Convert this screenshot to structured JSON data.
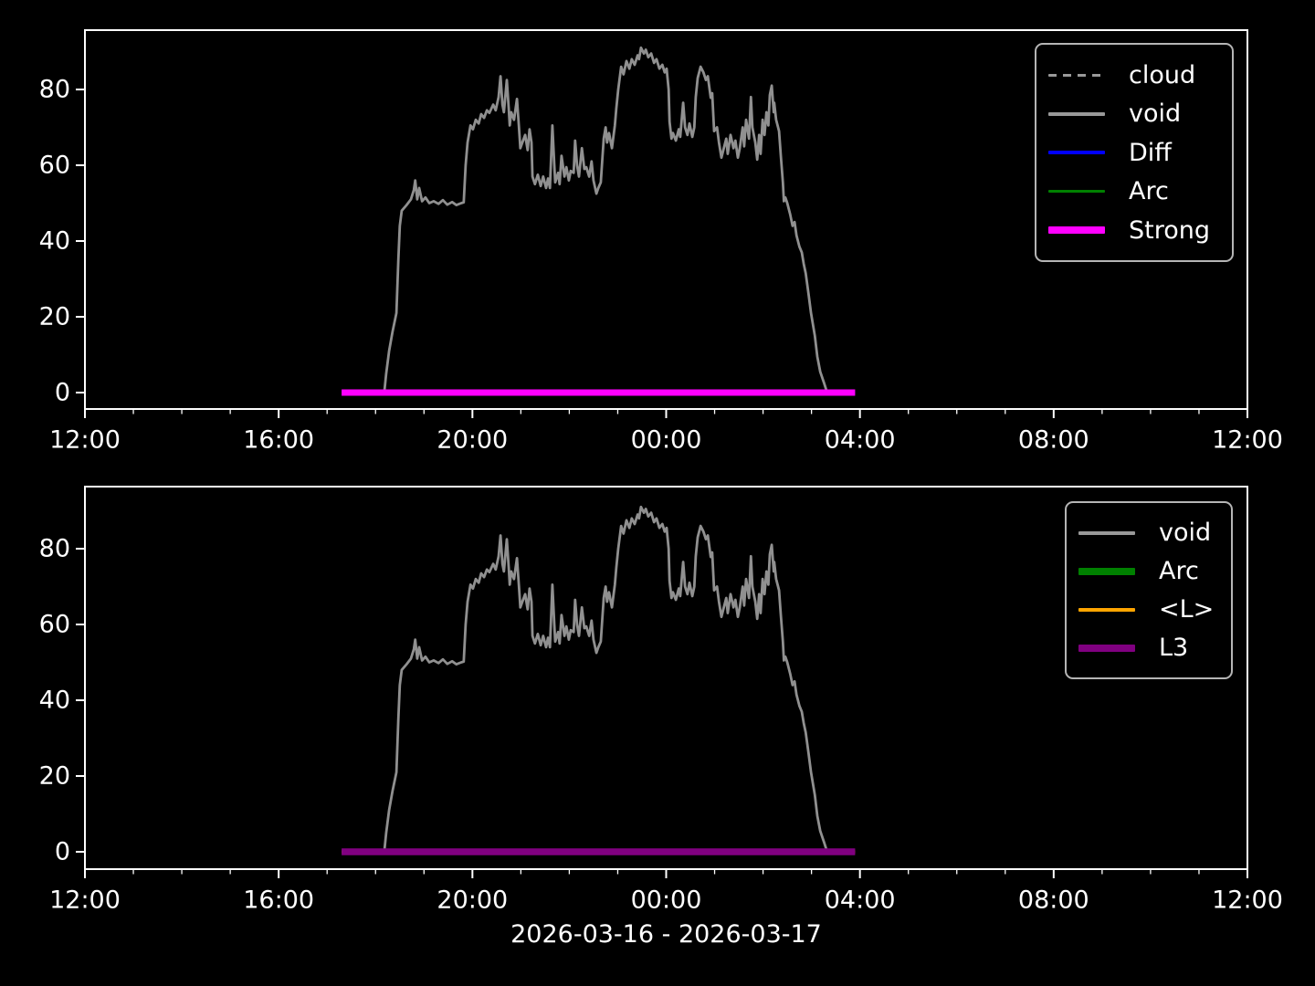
{
  "figure": {
    "background": "#000000",
    "frame_color": "#ffffff",
    "text_color": "#ffffff",
    "legend_frame_color": "#b5b5b5",
    "xlabel": "2026-03-16 - 2026-03-17"
  },
  "shared_series_points": {
    "void": [
      [
        18.18,
        0
      ],
      [
        18.22,
        5
      ],
      [
        18.28,
        11
      ],
      [
        18.35,
        16
      ],
      [
        18.43,
        21
      ],
      [
        18.47,
        35
      ],
      [
        18.5,
        44
      ],
      [
        18.54,
        48
      ],
      [
        18.64,
        49.5
      ],
      [
        18.73,
        51
      ],
      [
        18.79,
        53.5
      ],
      [
        18.82,
        56
      ],
      [
        18.86,
        51
      ],
      [
        18.9,
        54
      ],
      [
        18.96,
        50.5
      ],
      [
        19.03,
        51.5
      ],
      [
        19.11,
        50
      ],
      [
        19.2,
        50.5
      ],
      [
        19.3,
        49.8
      ],
      [
        19.39,
        50.8
      ],
      [
        19.48,
        49.6
      ],
      [
        19.58,
        50.3
      ],
      [
        19.67,
        49.5
      ],
      [
        19.77,
        50
      ],
      [
        19.82,
        50.2
      ],
      [
        19.86,
        60
      ],
      [
        19.9,
        66
      ],
      [
        19.96,
        70.5
      ],
      [
        20.01,
        69.5
      ],
      [
        20.07,
        72
      ],
      [
        20.13,
        71
      ],
      [
        20.18,
        73.5
      ],
      [
        20.24,
        72.5
      ],
      [
        20.3,
        74.5
      ],
      [
        20.35,
        73.8
      ],
      [
        20.43,
        76
      ],
      [
        20.48,
        74.5
      ],
      [
        20.54,
        78
      ],
      [
        20.58,
        83.5
      ],
      [
        20.62,
        76
      ],
      [
        20.65,
        74
      ],
      [
        20.71,
        82.5
      ],
      [
        20.75,
        75
      ],
      [
        20.77,
        70.5
      ],
      [
        20.8,
        74
      ],
      [
        20.86,
        72
      ],
      [
        20.92,
        77.5
      ],
      [
        20.96,
        70
      ],
      [
        20.99,
        64.5
      ],
      [
        21.03,
        66
      ],
      [
        21.09,
        68
      ],
      [
        21.14,
        64
      ],
      [
        21.18,
        69.5
      ],
      [
        21.22,
        66
      ],
      [
        21.24,
        57
      ],
      [
        21.29,
        55
      ],
      [
        21.35,
        57.5
      ],
      [
        21.41,
        54.5
      ],
      [
        21.46,
        57
      ],
      [
        21.52,
        54
      ],
      [
        21.56,
        56.5
      ],
      [
        21.6,
        54
      ],
      [
        21.65,
        70.5
      ],
      [
        21.69,
        60
      ],
      [
        21.71,
        55.5
      ],
      [
        21.77,
        58
      ],
      [
        21.8,
        55
      ],
      [
        21.84,
        62.5
      ],
      [
        21.9,
        57
      ],
      [
        21.94,
        59.5
      ],
      [
        21.99,
        56
      ],
      [
        22.03,
        58.5
      ],
      [
        22.09,
        58
      ],
      [
        22.12,
        66.5
      ],
      [
        22.16,
        60
      ],
      [
        22.2,
        57
      ],
      [
        22.26,
        64.5
      ],
      [
        22.31,
        59
      ],
      [
        22.35,
        59.5
      ],
      [
        22.41,
        57
      ],
      [
        22.46,
        61
      ],
      [
        22.5,
        56
      ],
      [
        22.56,
        52.5
      ],
      [
        22.6,
        54
      ],
      [
        22.65,
        55.5
      ],
      [
        22.71,
        67
      ],
      [
        22.75,
        70
      ],
      [
        22.78,
        66
      ],
      [
        22.82,
        68.5
      ],
      [
        22.88,
        64.5
      ],
      [
        22.94,
        70.5
      ],
      [
        22.97,
        75
      ],
      [
        23.01,
        80
      ],
      [
        23.07,
        86
      ],
      [
        23.12,
        84
      ],
      [
        23.18,
        87.5
      ],
      [
        23.24,
        85.5
      ],
      [
        23.29,
        88
      ],
      [
        23.35,
        86.5
      ],
      [
        23.41,
        89
      ],
      [
        23.44,
        88
      ],
      [
        23.48,
        91
      ],
      [
        23.54,
        89.5
      ],
      [
        23.58,
        90.5
      ],
      [
        23.63,
        88.5
      ],
      [
        23.69,
        89.5
      ],
      [
        23.75,
        87
      ],
      [
        23.8,
        88
      ],
      [
        23.86,
        85.5
      ],
      [
        23.92,
        86.5
      ],
      [
        23.97,
        84.5
      ],
      [
        24.01,
        85.5
      ],
      [
        24.05,
        80
      ],
      [
        24.07,
        71.5
      ],
      [
        24.11,
        67
      ],
      [
        24.14,
        68.5
      ],
      [
        24.2,
        66.5
      ],
      [
        24.26,
        69.5
      ],
      [
        24.29,
        67.5
      ],
      [
        24.35,
        76.5
      ],
      [
        24.39,
        70
      ],
      [
        24.44,
        68
      ],
      [
        24.48,
        71
      ],
      [
        24.54,
        67.5
      ],
      [
        24.58,
        70
      ],
      [
        24.61,
        78
      ],
      [
        24.65,
        83
      ],
      [
        24.71,
        86
      ],
      [
        24.77,
        84.5
      ],
      [
        24.82,
        82.5
      ],
      [
        24.86,
        83.5
      ],
      [
        24.92,
        77.8
      ],
      [
        24.95,
        79
      ],
      [
        24.99,
        69
      ],
      [
        25.05,
        70
      ],
      [
        25.09,
        66
      ],
      [
        25.14,
        62
      ],
      [
        25.18,
        64
      ],
      [
        25.24,
        67
      ],
      [
        25.27,
        63
      ],
      [
        25.33,
        68
      ],
      [
        25.39,
        64.5
      ],
      [
        25.43,
        66.5
      ],
      [
        25.48,
        62
      ],
      [
        25.52,
        64.5
      ],
      [
        25.58,
        70
      ],
      [
        25.61,
        65
      ],
      [
        25.65,
        72
      ],
      [
        25.71,
        67
      ],
      [
        25.75,
        78
      ],
      [
        25.78,
        70
      ],
      [
        25.84,
        66
      ],
      [
        25.88,
        61.5
      ],
      [
        25.92,
        68
      ],
      [
        25.95,
        63
      ],
      [
        25.99,
        72
      ],
      [
        26.03,
        68
      ],
      [
        26.07,
        74
      ],
      [
        26.11,
        70.5
      ],
      [
        26.14,
        78.5
      ],
      [
        26.18,
        81
      ],
      [
        26.22,
        74
      ],
      [
        26.23,
        76.5
      ],
      [
        26.27,
        72
      ],
      [
        26.33,
        69
      ],
      [
        26.37,
        62
      ],
      [
        26.41,
        55.5
      ],
      [
        26.43,
        50.5
      ],
      [
        26.46,
        51.5
      ],
      [
        26.5,
        50
      ],
      [
        26.56,
        47
      ],
      [
        26.61,
        44
      ],
      [
        26.65,
        45
      ],
      [
        26.69,
        41.5
      ],
      [
        26.75,
        38.5
      ],
      [
        26.8,
        37
      ],
      [
        26.84,
        34
      ],
      [
        26.88,
        31.5
      ],
      [
        26.94,
        26
      ],
      [
        26.99,
        21
      ],
      [
        27.07,
        15
      ],
      [
        27.12,
        9.5
      ],
      [
        27.18,
        5.5
      ],
      [
        27.26,
        2.5
      ],
      [
        27.31,
        0.5
      ],
      [
        27.33,
        0
      ]
    ]
  },
  "chart_data": [
    {
      "type": "line",
      "title": "",
      "xlabel": "",
      "ylabel": "",
      "x_axis": {
        "range_hours": [
          12,
          36
        ],
        "tick_hours": [
          12,
          16,
          20,
          24,
          28,
          32,
          36
        ],
        "tick_labels": [
          "12:00",
          "16:00",
          "20:00",
          "00:00",
          "04:00",
          "08:00",
          "12:00"
        ],
        "minor_tick_every_hours": 1
      },
      "y_axis": {
        "ticks": [
          0,
          20,
          40,
          60,
          80
        ],
        "range": [
          -4.3,
          95.7
        ]
      },
      "grid": false,
      "legend": {
        "position": "upper right",
        "entries": [
          {
            "label": "cloud",
            "color": "#999999",
            "width": 3,
            "dashed": true
          },
          {
            "label": "void",
            "color": "#999999",
            "width": 4,
            "dashed": false
          },
          {
            "label": "Diff",
            "color": "#0000ff",
            "width": 4,
            "dashed": false
          },
          {
            "label": "Arc",
            "color": "#008000",
            "width": 3,
            "dashed": false
          },
          {
            "label": "Strong",
            "color": "#ff00ff",
            "width": 8,
            "dashed": false
          }
        ]
      },
      "series": [
        {
          "name": "Diff",
          "color": "#0000ff",
          "width": 3,
          "points": [
            [
              17.3,
              0
            ],
            [
              27.9,
              0
            ]
          ]
        },
        {
          "name": "Arc",
          "color": "#008000",
          "width": 2.5,
          "points": [
            [
              17.3,
              0
            ],
            [
              27.9,
              0
            ]
          ]
        },
        {
          "name": "void",
          "color": "#909090",
          "width": 2.8,
          "points_ref": "void"
        },
        {
          "name": "Strong",
          "color": "#ff00ff",
          "width": 7,
          "points": [
            [
              17.3,
              0
            ],
            [
              27.9,
              0
            ]
          ]
        },
        {
          "name": "cloud",
          "color": "#909090",
          "width": 2.5,
          "dashed": true,
          "points": []
        }
      ]
    },
    {
      "type": "line",
      "title": "",
      "xlabel": "2026-03-16 - 2026-03-17",
      "ylabel": "",
      "x_axis": {
        "range_hours": [
          12,
          36
        ],
        "tick_hours": [
          12,
          16,
          20,
          24,
          28,
          32,
          36
        ],
        "tick_labels": [
          "12:00",
          "16:00",
          "20:00",
          "00:00",
          "04:00",
          "08:00",
          "12:00"
        ],
        "minor_tick_every_hours": 1
      },
      "y_axis": {
        "ticks": [
          0,
          20,
          40,
          60,
          80
        ],
        "range": [
          -4.5,
          96.4
        ]
      },
      "grid": false,
      "legend": {
        "position": "upper right",
        "entries": [
          {
            "label": "void",
            "color": "#999999",
            "width": 4,
            "dashed": false
          },
          {
            "label": "Arc",
            "color": "#008000",
            "width": 8,
            "dashed": false
          },
          {
            "label": "<L>",
            "color": "#ffa500",
            "width": 4,
            "dashed": false
          },
          {
            "label": "L3",
            "color": "#800080",
            "width": 8,
            "dashed": false
          }
        ]
      },
      "series": [
        {
          "name": "Arc",
          "color": "#008000",
          "width": 5,
          "points": [
            [
              17.3,
              0
            ],
            [
              27.9,
              0
            ]
          ]
        },
        {
          "name": "<L>",
          "color": "#ffa500",
          "width": 3,
          "points": [
            [
              17.3,
              0
            ],
            [
              27.9,
              0
            ]
          ]
        },
        {
          "name": "void",
          "color": "#909090",
          "width": 2.8,
          "points_ref": "void"
        },
        {
          "name": "L3",
          "color": "#800080",
          "width": 7.5,
          "points": [
            [
              17.3,
              0
            ],
            [
              27.9,
              0
            ]
          ]
        }
      ]
    }
  ]
}
